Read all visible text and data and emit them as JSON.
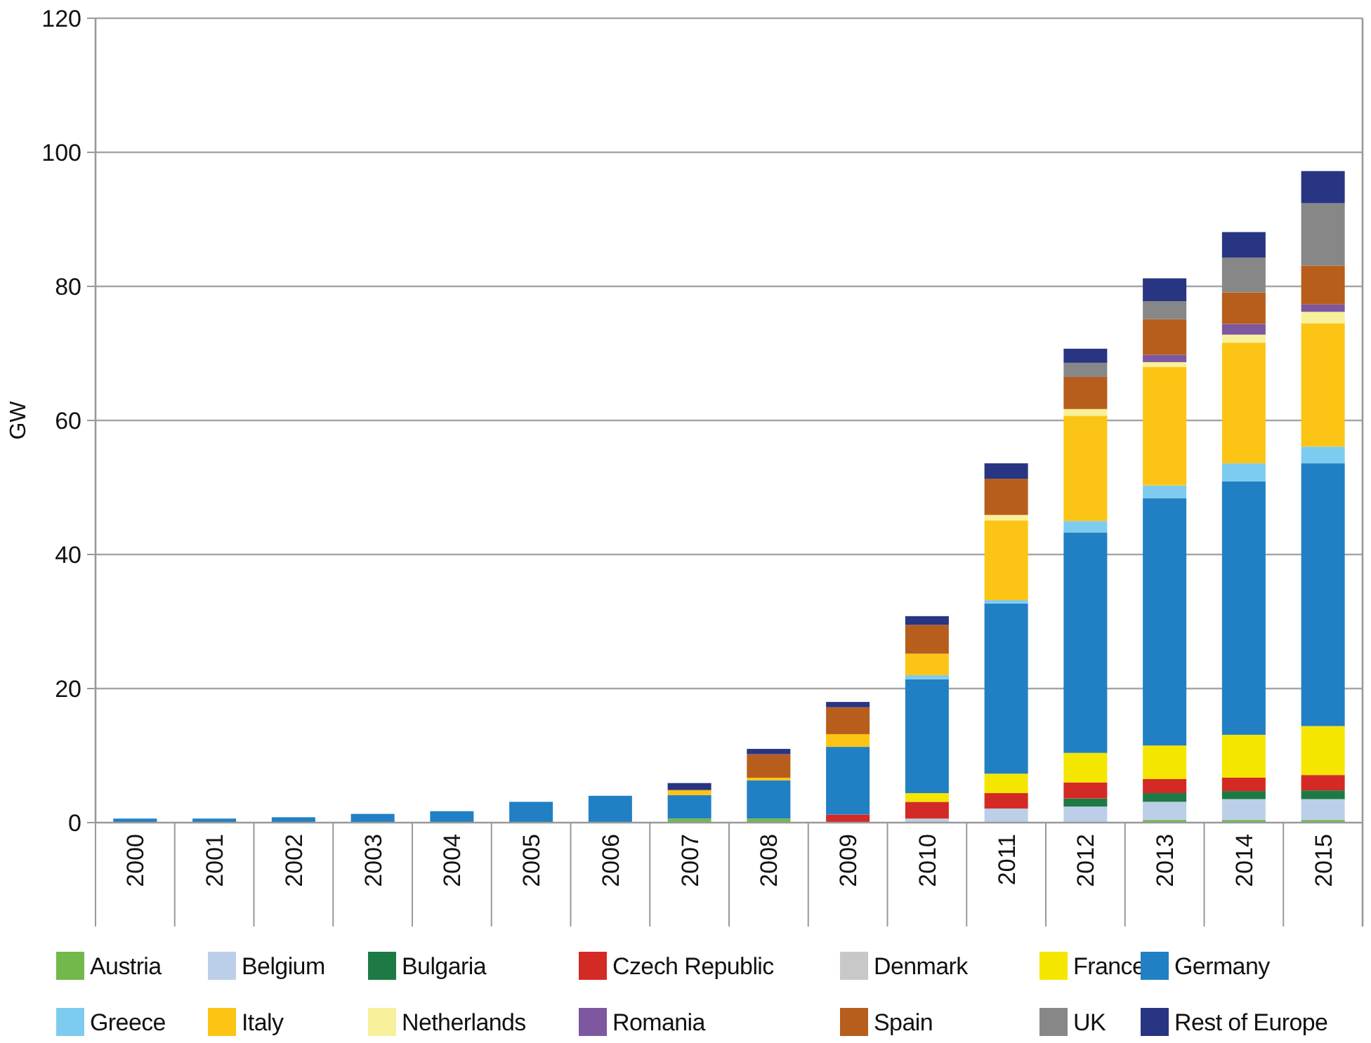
{
  "chart_data": {
    "type": "bar",
    "stacked": true,
    "ylabel": "GW",
    "ylim": [
      0,
      120
    ],
    "yticks": [
      0,
      20,
      40,
      60,
      80,
      100,
      120
    ],
    "grid": "y",
    "legend": "bottom",
    "categories": [
      "2000",
      "2001",
      "2002",
      "2003",
      "2004",
      "2005",
      "2006",
      "2007",
      "2008",
      "2009",
      "2010",
      "2011",
      "2012",
      "2013",
      "2014",
      "2015"
    ],
    "series": [
      {
        "name": "Austria",
        "color": "#72b84a",
        "values": [
          0,
          0,
          0,
          0,
          0,
          0,
          0,
          0.6,
          0.6,
          0,
          0,
          0,
          0,
          0.4,
          0.4,
          0.4
        ]
      },
      {
        "name": "Belgium",
        "color": "#bccfe8",
        "values": [
          0,
          0,
          0,
          0,
          0,
          0,
          0,
          0,
          0,
          0,
          0.6,
          2.1,
          2.4,
          2.7,
          3.1,
          3.1
        ]
      },
      {
        "name": "Bulgaria",
        "color": "#1e7a45",
        "values": [
          0,
          0,
          0,
          0,
          0,
          0,
          0,
          0,
          0,
          0,
          0,
          0,
          1.2,
          1.3,
          1.2,
          1.3
        ]
      },
      {
        "name": "Czech Republic",
        "color": "#d42a25",
        "values": [
          0,
          0,
          0,
          0,
          0,
          0,
          0,
          0,
          0,
          1.2,
          2.5,
          2.3,
          2.4,
          2.1,
          2.0,
          2.3
        ]
      },
      {
        "name": "Denmark",
        "color": "#c8c8c8",
        "values": [
          0,
          0,
          0,
          0,
          0,
          0,
          0,
          0,
          0,
          0,
          0,
          0,
          0,
          0,
          0,
          0
        ]
      },
      {
        "name": "France",
        "color": "#f5e600",
        "values": [
          0,
          0,
          0,
          0,
          0,
          0,
          0,
          0,
          0,
          0,
          1.3,
          2.9,
          4.4,
          5.0,
          6.4,
          7.3
        ]
      },
      {
        "name": "Germany",
        "color": "#2180c4",
        "values": [
          0.6,
          0.6,
          0.8,
          1.3,
          1.7,
          3.1,
          4.0,
          3.5,
          5.7,
          10.1,
          17.0,
          25.4,
          32.9,
          36.9,
          37.8,
          39.2
        ]
      },
      {
        "name": "Greece",
        "color": "#7ecbf0",
        "values": [
          0,
          0,
          0,
          0,
          0,
          0,
          0,
          0,
          0,
          0,
          0.6,
          0.5,
          1.7,
          1.9,
          2.7,
          2.5
        ]
      },
      {
        "name": "Italy",
        "color": "#fcc515",
        "values": [
          0,
          0,
          0,
          0,
          0,
          0,
          0,
          0.7,
          0.4,
          1.9,
          3.2,
          11.9,
          15.7,
          17.7,
          18.0,
          18.4
        ]
      },
      {
        "name": "Netherlands",
        "color": "#f8f09a",
        "values": [
          0,
          0,
          0,
          0,
          0,
          0,
          0,
          0,
          0,
          0,
          0,
          0.8,
          1.0,
          0.7,
          1.2,
          1.7
        ]
      },
      {
        "name": "Romania",
        "color": "#7d57a0",
        "values": [
          0,
          0,
          0,
          0,
          0,
          0,
          0,
          0,
          0,
          0,
          0,
          0,
          0,
          1.1,
          1.6,
          1.1
        ]
      },
      {
        "name": "Spain",
        "color": "#b75e1c",
        "values": [
          0,
          0,
          0,
          0,
          0,
          0,
          0,
          0.1,
          3.5,
          4.0,
          4.3,
          5.4,
          4.8,
          5.3,
          4.7,
          5.8
        ]
      },
      {
        "name": "UK",
        "color": "#878787",
        "values": [
          0,
          0,
          0,
          0,
          0,
          0,
          0,
          0,
          0,
          0,
          0,
          0,
          2.1,
          2.7,
          5.2,
          9.3
        ]
      },
      {
        "name": "Rest of Europe",
        "color": "#283583",
        "values": [
          0,
          0,
          0,
          0,
          0,
          0,
          0,
          1.0,
          0.8,
          0.8,
          1.3,
          2.3,
          2.1,
          3.4,
          3.8,
          4.8
        ]
      }
    ]
  }
}
